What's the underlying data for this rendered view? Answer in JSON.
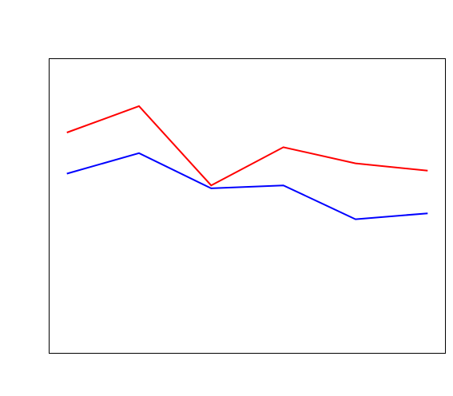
{
  "chart_data": {
    "type": "line",
    "title": "",
    "xlabel": "",
    "ylabel": "",
    "x": [
      1,
      2,
      3,
      4,
      5,
      6
    ],
    "xlim": [
      0.76,
      6.24
    ],
    "ylim": [
      0,
      100
    ],
    "grid": false,
    "legend": "none",
    "series": [
      {
        "color": "#ff0000",
        "values": [
          75,
          84,
          57,
          70,
          64.5,
          62
        ]
      },
      {
        "color": "#0000ff",
        "values": [
          61,
          68,
          56,
          57,
          45.5,
          47.5
        ]
      }
    ]
  }
}
